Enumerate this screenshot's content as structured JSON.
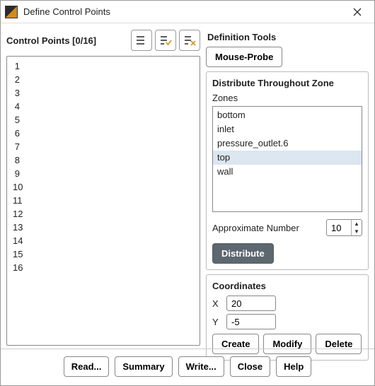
{
  "window": {
    "title": "Define Control Points"
  },
  "left": {
    "label": "Control Points [0/16]",
    "rows": [
      "1",
      "2",
      "3",
      "4",
      "5",
      "6",
      "7",
      "8",
      "9",
      "10",
      "11",
      "12",
      "13",
      "14",
      "15",
      "16"
    ]
  },
  "icons": {
    "select_all": "select-all-icon",
    "select_checked": "select-checked-icon",
    "clear": "clear-selection-icon"
  },
  "right": {
    "title": "Definition Tools",
    "mouse_probe": "Mouse-Probe",
    "distribute_group": {
      "title": "Distribute Throughout Zone",
      "zones_label": "Zones",
      "zones": [
        "bottom",
        "inlet",
        "pressure_outlet.6",
        "top",
        "wall"
      ],
      "selected_zone": "top",
      "approx_label": "Approximate Number",
      "approx_value": "10",
      "distribute_btn": "Distribute"
    },
    "coords": {
      "title": "Coordinates",
      "x_label": "X",
      "x_value": "20",
      "y_label": "Y",
      "y_value": "-5",
      "create": "Create",
      "modify": "Modify",
      "delete": "Delete"
    }
  },
  "footer": {
    "read": "Read...",
    "summary": "Summary",
    "write": "Write...",
    "close": "Close",
    "help": "Help"
  },
  "colors": {
    "selection_bg": "#dbe6f0",
    "primary_btn_bg": "#5d676f"
  }
}
